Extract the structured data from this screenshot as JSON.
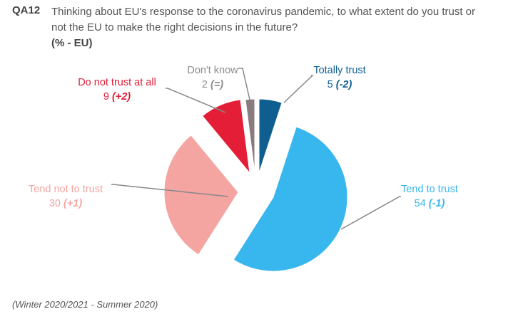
{
  "header": {
    "code": "QA12",
    "title": "Thinking about EU's response to the coronavirus pandemic, to what extent do you trust or not the EU to make the right decisions in the future?",
    "subtitle": "(% - EU)"
  },
  "footnote": "(Winter 2020/2021 - Summer 2020)",
  "chart_data": {
    "type": "pie",
    "title": "Thinking about EU's response to the coronavirus pandemic, to what extent do you trust or not the EU to make the right decisions in the future?",
    "start": "top",
    "direction": "clockwise",
    "exploded": true,
    "slices": [
      {
        "label": "Totally trust",
        "value": 5,
        "change": "(-2)",
        "color": "#0e5e8f"
      },
      {
        "label": "Tend to trust",
        "value": 54,
        "change": "(-1)",
        "color": "#38b6ee"
      },
      {
        "label": "Tend not to trust",
        "value": 30,
        "change": "(+1)",
        "color": "#f4a5a2"
      },
      {
        "label": "Do not trust at all",
        "value": 9,
        "change": "(+2)",
        "color": "#e31e36"
      },
      {
        "label": "Don't know",
        "value": 2,
        "change": "(=)",
        "color": "#8a7b7e"
      }
    ]
  }
}
